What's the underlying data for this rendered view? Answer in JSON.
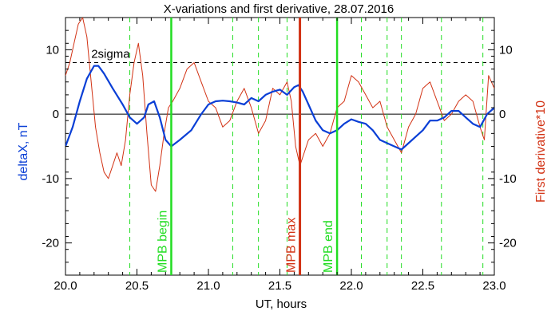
{
  "chart_data": {
    "type": "line",
    "title": "X-variations and first derivative, 28.07.2016",
    "xlabel": "UT, hours",
    "ylabel_left": "deltaX, nT",
    "ylabel_right": "First derivative*10",
    "xlim": [
      20.0,
      23.0
    ],
    "ylim": [
      -25,
      15
    ],
    "x_ticks": [
      "20.0",
      "20.5",
      "21.0",
      "21.5",
      "22.0",
      "22.5",
      "23.0"
    ],
    "y_ticks_left": [
      "10",
      "0",
      "-10",
      "-20"
    ],
    "y_ticks_right": [
      "10",
      "0",
      "-10",
      "-20"
    ],
    "threshold": {
      "label": "2sigma",
      "value": 8.0
    },
    "zero_line": 0,
    "colors": {
      "deltax": "#0a3fd6",
      "derivative": "#d23214",
      "green_marker": "#22dd22",
      "max_marker": "#d23214"
    },
    "markers": [
      {
        "x": 20.74,
        "label": "MPB begin",
        "kind": "begin"
      },
      {
        "x": 21.64,
        "label": "MPB max",
        "kind": "max"
      },
      {
        "x": 21.9,
        "label": "MPB end",
        "kind": "end"
      }
    ],
    "dashed_lines_x": [
      20.45,
      21.17,
      21.35,
      21.55,
      22.07,
      22.25,
      22.35,
      22.63,
      22.92
    ],
    "series": [
      {
        "name": "deltaX, nT",
        "axis": "left",
        "x": [
          20.0,
          20.05,
          20.1,
          20.15,
          20.2,
          20.23,
          20.27,
          20.33,
          20.4,
          20.45,
          20.5,
          20.55,
          20.58,
          20.62,
          20.66,
          20.7,
          20.74,
          20.8,
          20.88,
          20.95,
          21.0,
          21.05,
          21.1,
          21.15,
          21.2,
          21.25,
          21.3,
          21.35,
          21.4,
          21.45,
          21.5,
          21.55,
          21.6,
          21.63,
          21.66,
          21.7,
          21.75,
          21.8,
          21.85,
          21.9,
          21.95,
          22.0,
          22.05,
          22.1,
          22.15,
          22.2,
          22.25,
          22.3,
          22.35,
          22.4,
          22.45,
          22.5,
          22.55,
          22.6,
          22.65,
          22.7,
          22.75,
          22.8,
          22.85,
          22.9,
          22.95,
          23.0
        ],
        "y": [
          -5,
          -2,
          2,
          5.5,
          7.5,
          7.5,
          6.3,
          4,
          1.5,
          -0.5,
          -1.5,
          -0.5,
          1.5,
          2,
          -0.5,
          -4,
          -5,
          -4,
          -2.5,
          0,
          1.5,
          2.0,
          2.1,
          2.0,
          1.8,
          1.5,
          2.5,
          2.0,
          3.0,
          3.5,
          3.8,
          3.0,
          4.2,
          4.5,
          3.5,
          1.5,
          -1.0,
          -2.5,
          -3.0,
          -2.5,
          -1.5,
          -0.8,
          -1.2,
          -1.5,
          -2.5,
          -4.0,
          -4.5,
          -5.0,
          -5.5,
          -4.5,
          -3.5,
          -2.5,
          -1.0,
          -1.0,
          -0.5,
          0.5,
          0.5,
          -0.5,
          -1.5,
          -2.0,
          0,
          1.0
        ]
      },
      {
        "name": "First derivative*10",
        "axis": "right",
        "x": [
          20.0,
          20.03,
          20.06,
          20.09,
          20.12,
          20.15,
          20.18,
          20.21,
          20.24,
          20.27,
          20.3,
          20.33,
          20.36,
          20.39,
          20.42,
          20.45,
          20.48,
          20.51,
          20.54,
          20.57,
          20.6,
          20.63,
          20.66,
          20.69,
          20.72,
          20.75,
          20.8,
          20.85,
          20.9,
          20.95,
          21.0,
          21.05,
          21.1,
          21.15,
          21.2,
          21.25,
          21.3,
          21.35,
          21.4,
          21.45,
          21.5,
          21.55,
          21.58,
          21.61,
          21.64,
          21.67,
          21.7,
          21.75,
          21.8,
          21.85,
          21.9,
          21.95,
          22.0,
          22.05,
          22.1,
          22.15,
          22.2,
          22.25,
          22.3,
          22.35,
          22.4,
          22.45,
          22.5,
          22.55,
          22.6,
          22.65,
          22.7,
          22.75,
          22.8,
          22.85,
          22.9,
          22.93,
          22.96,
          23.0
        ],
        "y": [
          6,
          8,
          11,
          14,
          15,
          12,
          5,
          -2,
          -6,
          -9,
          -10,
          -8,
          -6,
          -8,
          -4,
          3,
          8,
          11,
          6,
          -3,
          -11,
          -12,
          -8,
          -3,
          1,
          2,
          4,
          7,
          8,
          5,
          2,
          1,
          -2,
          -1,
          2,
          4,
          1,
          -3,
          -1,
          4,
          3,
          5,
          2,
          -5,
          -8,
          -6,
          -4,
          -3,
          -5,
          -3,
          1,
          2,
          6,
          5,
          3,
          1,
          2,
          -2,
          -4,
          -6,
          -2,
          0,
          4,
          5,
          2,
          -1,
          0,
          2,
          3,
          2,
          -2,
          -4,
          6,
          4
        ]
      }
    ]
  }
}
